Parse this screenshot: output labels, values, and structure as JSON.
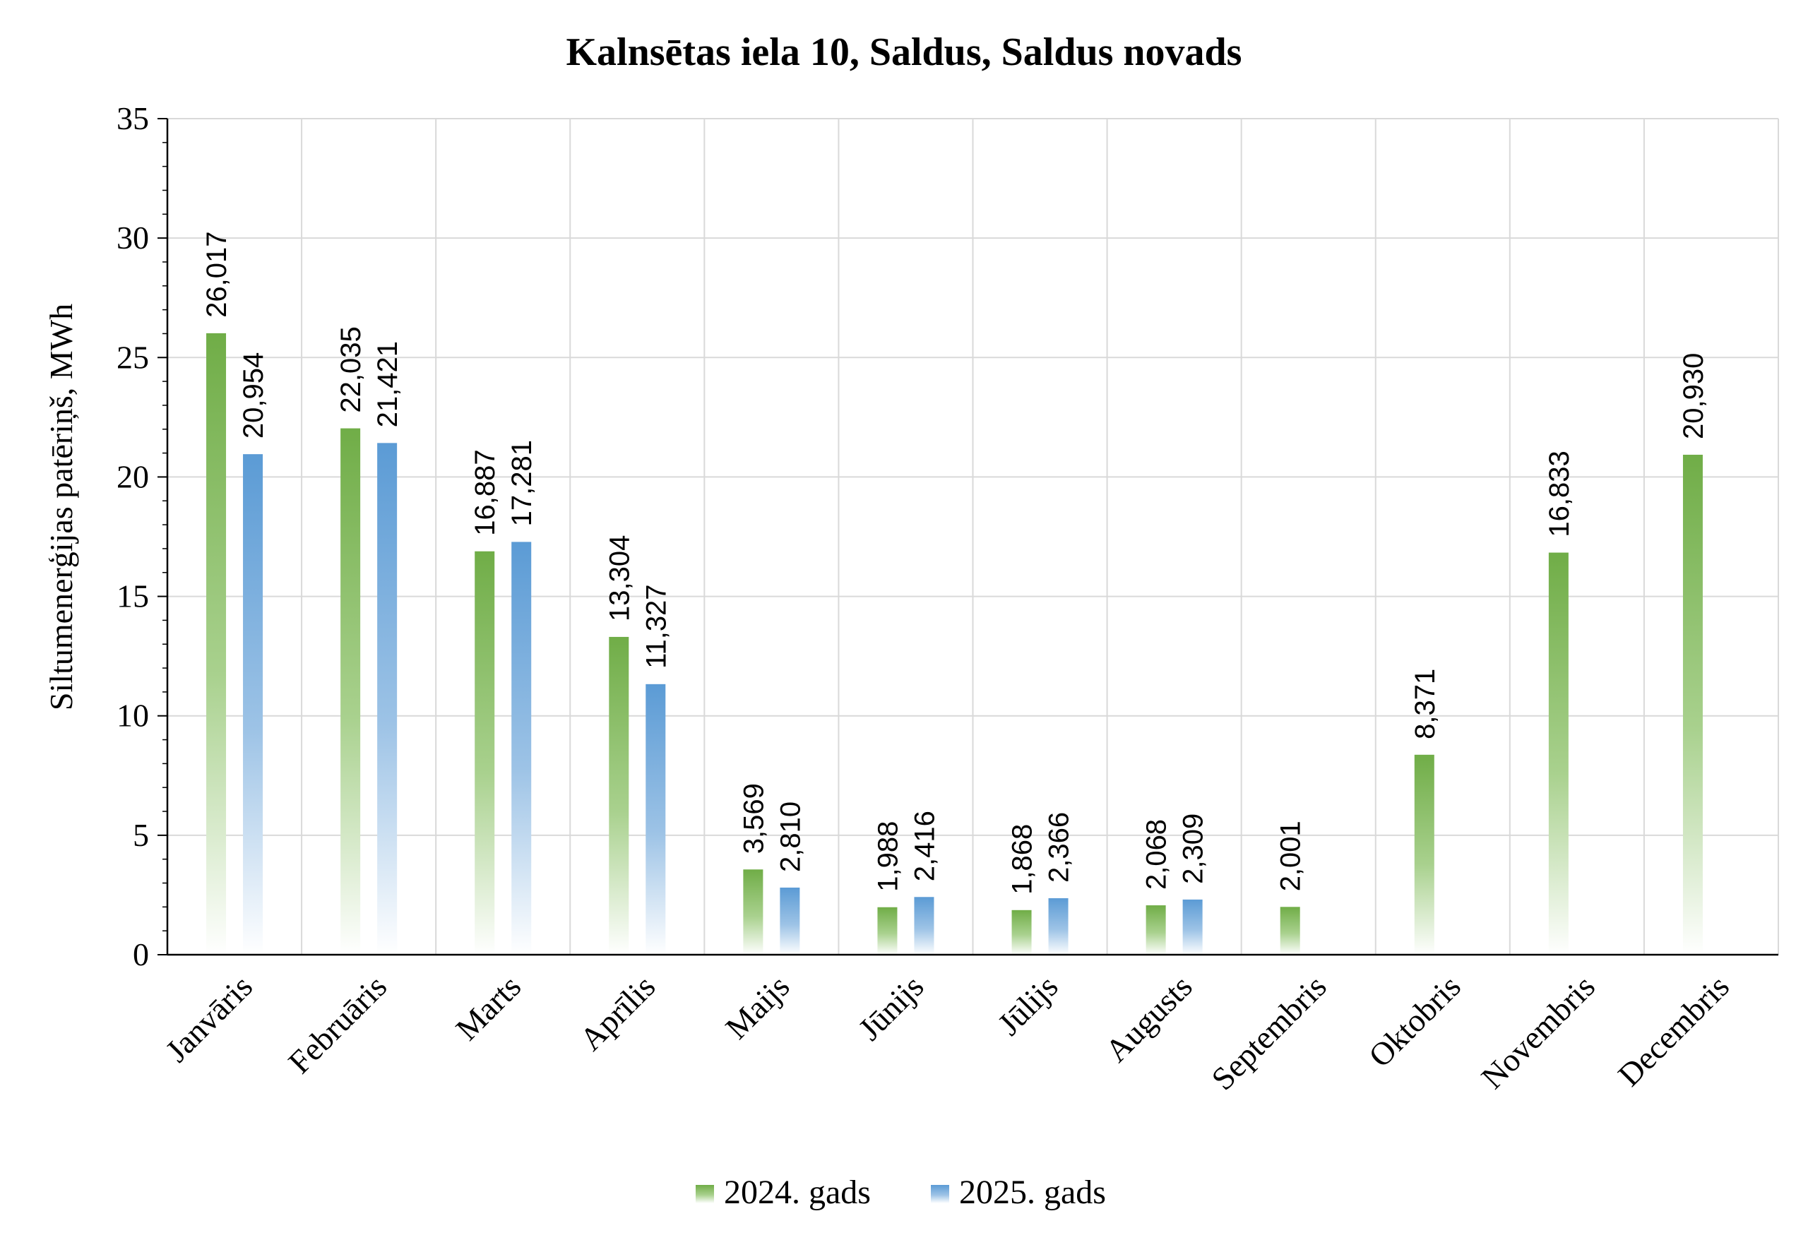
{
  "chart_data": {
    "type": "bar",
    "title": "Kalnsētas iela 10, Saldus, Saldus novads",
    "ylabel": "Siltumenerģijas patēriņš, MWh",
    "xlabel": "",
    "ylim": [
      0,
      35
    ],
    "yticks": [
      "0",
      "5",
      "10",
      "15",
      "20",
      "25",
      "30",
      "35"
    ],
    "grid": true,
    "legend_position": "bottom",
    "categories": [
      "Janvāris",
      "Februāris",
      "Marts",
      "Aprīlis",
      "Maijs",
      "Jūnijs",
      "Jūlijs",
      "Augusts",
      "Septembris",
      "Oktobris",
      "Novembris",
      "Decembris"
    ],
    "series": [
      {
        "name": "2024. gads",
        "color": "#70ad47",
        "values": [
          26.017,
          22.035,
          16.887,
          13.304,
          3.569,
          1.988,
          1.868,
          2.068,
          2.001,
          8.371,
          16.833,
          20.93
        ],
        "labels": [
          "26,017",
          "22,035",
          "16,887",
          "13,304",
          "3,569",
          "1,988",
          "1,868",
          "2,068",
          "2,001",
          "8,371",
          "16,833",
          "20,930"
        ]
      },
      {
        "name": "2025. gads",
        "color": "#5b9bd5",
        "values": [
          20.954,
          21.421,
          17.281,
          11.327,
          2.81,
          2.416,
          2.366,
          2.309,
          null,
          null,
          null,
          null
        ],
        "labels": [
          "20,954",
          "21,421",
          "17,281",
          "11,327",
          "2,810",
          "2,416",
          "2,366",
          "2,309",
          null,
          null,
          null,
          null
        ]
      }
    ]
  }
}
